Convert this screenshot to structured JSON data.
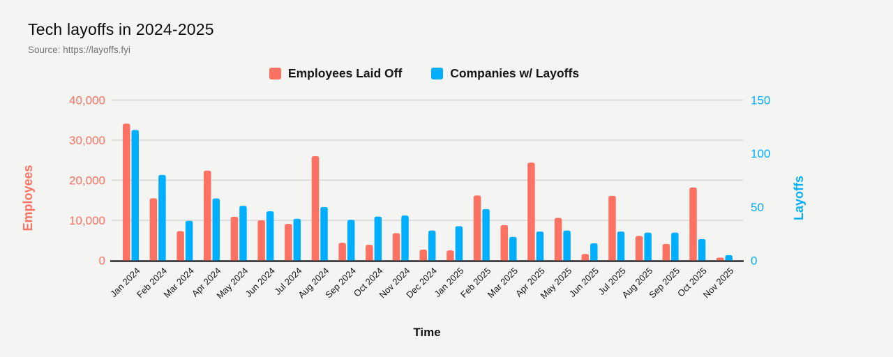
{
  "header": {
    "title": "Tech layoffs in 2024-2025",
    "source": "Source: https://layoffs.fyi"
  },
  "legend": {
    "items": [
      {
        "label": "Employees Laid Off",
        "color": "#fc7162"
      },
      {
        "label": "Companies w/ Layoffs",
        "color": "#00aeff"
      }
    ]
  },
  "chart_data": {
    "type": "bar",
    "title": "Tech layoffs in 2024-2025",
    "subtitle": "Source: https://layoffs.fyi",
    "xlabel": "Time",
    "grid": true,
    "legend_position": "top",
    "left_axis": {
      "label": "Employees",
      "color": "#fc7162",
      "min": 0,
      "max": 40000,
      "ticks": [
        {
          "value": 0,
          "label": "0"
        },
        {
          "value": 10000,
          "label": "10,000"
        },
        {
          "value": 20000,
          "label": "20,000"
        },
        {
          "value": 30000,
          "label": "30,000"
        },
        {
          "value": 40000,
          "label": "40,000"
        }
      ]
    },
    "right_axis": {
      "label": "Layoffs",
      "color": "#00aeff",
      "min": 0,
      "max": 150,
      "ticks": [
        {
          "value": 0,
          "label": "0"
        },
        {
          "value": 50,
          "label": "50"
        },
        {
          "value": 100,
          "label": "100"
        },
        {
          "value": 150,
          "label": "150"
        }
      ]
    },
    "categories": [
      "Jan 2024",
      "Feb 2024",
      "Mar 2024",
      "Apr 2024",
      "May 2024",
      "Jun 2024",
      "Jul 2024",
      "Aug 2024",
      "Sep 2024",
      "Oct 2024",
      "Nov 2024",
      "Dec 2024",
      "Jan 2025",
      "Feb 2025",
      "Mar 2025",
      "Apr 2025",
      "May 2025",
      "Jun 2025",
      "Jul 2025",
      "Aug 2025",
      "Sep 2025",
      "Oct 2025",
      "Nov 2025"
    ],
    "series": [
      {
        "name": "Employees Laid Off",
        "axis": "left",
        "color": "#fc7162",
        "values": [
          34100,
          15500,
          7300,
          22400,
          10900,
          10000,
          9100,
          26000,
          4400,
          3900,
          6800,
          2700,
          2500,
          16200,
          8800,
          24400,
          10600,
          1600,
          16100,
          6100,
          4100,
          18200,
          700
        ]
      },
      {
        "name": "Companies w/ Layoffs",
        "axis": "right",
        "color": "#00aeff",
        "values": [
          122,
          80,
          37,
          58,
          51,
          46,
          39,
          50,
          38,
          41,
          42,
          28,
          32,
          48,
          22,
          27,
          28,
          16,
          27,
          26,
          26,
          20,
          5
        ]
      }
    ]
  }
}
